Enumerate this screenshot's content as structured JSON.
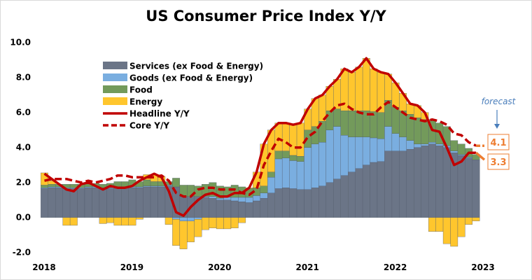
{
  "chart_data": {
    "type": "bar",
    "stacked": true,
    "title": "US Consumer Price Index Y/Y",
    "xlabel": "",
    "ylabel": "",
    "ylim": [
      -2.0,
      10.0
    ],
    "y_ticks": [
      "10.0",
      "8.0",
      "6.0",
      "4.0",
      "2.0",
      "0.0",
      "-2.0"
    ],
    "x_ticks": [
      "2018",
      "2019",
      "2020",
      "2021",
      "2022",
      "2023"
    ],
    "grid": false,
    "legend_position": "top-left",
    "series": [
      {
        "name": "Services (ex Food & Energy)",
        "kind": "bar",
        "color": "#6b7587",
        "values": [
          1.65,
          1.7,
          1.7,
          1.65,
          1.65,
          1.65,
          1.7,
          1.7,
          1.65,
          1.65,
          1.7,
          1.7,
          1.7,
          1.7,
          1.75,
          1.75,
          1.75,
          1.8,
          1.75,
          1.2,
          1.2,
          1.2,
          1.15,
          1.1,
          1.0,
          1.0,
          0.95,
          0.9,
          0.85,
          0.95,
          1.1,
          1.4,
          1.65,
          1.7,
          1.65,
          1.6,
          1.6,
          1.7,
          1.8,
          2.0,
          2.2,
          2.4,
          2.6,
          2.8,
          3.0,
          3.15,
          3.2,
          3.8,
          3.8,
          3.8,
          3.9,
          4.0,
          4.1,
          4.2,
          4.1,
          4.0,
          3.7,
          3.55,
          3.4,
          3.3
        ]
      },
      {
        "name": "Goods (ex Food & Energy)",
        "kind": "bar",
        "color": "#7aaee0",
        "values": [
          0.05,
          0.05,
          0.05,
          0.05,
          0.05,
          0.05,
          0.05,
          0.05,
          0.05,
          0.05,
          0.05,
          0.05,
          0.05,
          0.05,
          0.05,
          0.05,
          0.05,
          0.05,
          -0.1,
          -0.2,
          -0.2,
          -0.1,
          0.05,
          0.1,
          0.1,
          0.15,
          0.2,
          0.25,
          0.3,
          0.3,
          0.3,
          0.9,
          1.7,
          1.7,
          1.6,
          1.6,
          2.4,
          2.5,
          2.5,
          3.0,
          3.0,
          2.3,
          2.0,
          1.8,
          1.6,
          1.4,
          1.3,
          1.4,
          1.0,
          0.8,
          0.5,
          0.2,
          0.1,
          0.1,
          0.1,
          0.1,
          0.1,
          0.05,
          0.05,
          0.0
        ]
      },
      {
        "name": "Food",
        "kind": "bar",
        "color": "#739a5b",
        "values": [
          0.15,
          0.15,
          0.15,
          0.2,
          0.2,
          0.2,
          0.2,
          0.2,
          0.2,
          0.25,
          0.3,
          0.3,
          0.4,
          0.3,
          0.35,
          0.25,
          0.25,
          0.2,
          0.5,
          0.65,
          0.65,
          0.6,
          0.7,
          0.8,
          0.7,
          0.6,
          0.7,
          0.6,
          0.5,
          0.45,
          0.4,
          0.3,
          0.45,
          0.4,
          0.3,
          0.3,
          1.0,
          1.0,
          1.2,
          1.1,
          1.0,
          1.4,
          1.5,
          1.5,
          1.5,
          1.5,
          1.5,
          1.5,
          1.5,
          1.5,
          1.5,
          1.5,
          1.4,
          1.3,
          1.2,
          1.1,
          0.6,
          0.6,
          0.5,
          0.3
        ]
      },
      {
        "name": "Energy",
        "kind": "bar",
        "color": "#ffc62d",
        "values": [
          0.7,
          0.2,
          0.0,
          -0.45,
          -0.45,
          0.0,
          0.0,
          0.0,
          -0.35,
          -0.3,
          -0.45,
          -0.45,
          -0.45,
          -0.1,
          0.3,
          0.4,
          0.3,
          -0.4,
          -1.5,
          -1.6,
          -1.2,
          -1.0,
          -0.7,
          -0.6,
          -0.65,
          -0.65,
          -0.6,
          -0.3,
          0.05,
          0.9,
          2.4,
          2.4,
          1.6,
          1.6,
          1.75,
          1.9,
          1.2,
          1.6,
          1.5,
          1.4,
          1.7,
          2.4,
          2.2,
          2.5,
          3.0,
          2.45,
          2.3,
          1.5,
          1.4,
          1.0,
          0.6,
          0.7,
          0.4,
          -0.8,
          -0.8,
          -1.5,
          -1.65,
          -1.1,
          -0.4,
          -0.2
        ]
      },
      {
        "name": "Headline Y/Y",
        "kind": "line",
        "color": "#c00000",
        "dash": false,
        "values": [
          2.5,
          2.2,
          1.9,
          1.6,
          1.5,
          1.9,
          2.0,
          1.8,
          1.6,
          1.8,
          1.7,
          1.7,
          1.8,
          2.1,
          2.3,
          2.5,
          2.3,
          1.5,
          0.3,
          0.1,
          0.6,
          1.0,
          1.3,
          1.4,
          1.2,
          1.2,
          1.4,
          1.4,
          1.7,
          2.6,
          4.2,
          5.0,
          5.4,
          5.4,
          5.3,
          5.4,
          6.2,
          6.8,
          7.0,
          7.5,
          7.9,
          8.5,
          8.3,
          8.6,
          9.1,
          8.5,
          8.3,
          8.2,
          7.7,
          7.1,
          6.5,
          6.4,
          6.0,
          5.0,
          4.9,
          4.0,
          3.0,
          3.2,
          3.7,
          3.7
        ],
        "forecast": 3.3
      },
      {
        "name": "Core Y/Y",
        "kind": "line",
        "color": "#c00000",
        "dash": true,
        "values": [
          2.1,
          2.2,
          2.2,
          2.2,
          2.1,
          2.0,
          2.1,
          2.0,
          2.1,
          2.2,
          2.4,
          2.4,
          2.3,
          2.3,
          2.3,
          2.3,
          2.4,
          2.1,
          1.4,
          1.2,
          1.2,
          1.6,
          1.7,
          1.7,
          1.6,
          1.6,
          1.6,
          1.4,
          1.3,
          1.6,
          3.0,
          3.8,
          4.5,
          4.3,
          4.0,
          4.0,
          4.6,
          4.9,
          5.5,
          6.0,
          6.4,
          6.5,
          6.2,
          6.0,
          5.9,
          5.9,
          6.3,
          6.6,
          6.3,
          6.0,
          5.7,
          5.6,
          5.5,
          5.6,
          5.5,
          5.3,
          4.8,
          4.7,
          4.3,
          4.1
        ],
        "forecast": 4.1
      }
    ],
    "annotations": {
      "forecast_label": "forecast",
      "forecast_color": "#4a7ebb",
      "forecast_line_color": "#ed7d31",
      "core_forecast": "4.1",
      "headline_forecast": "3.3"
    }
  }
}
